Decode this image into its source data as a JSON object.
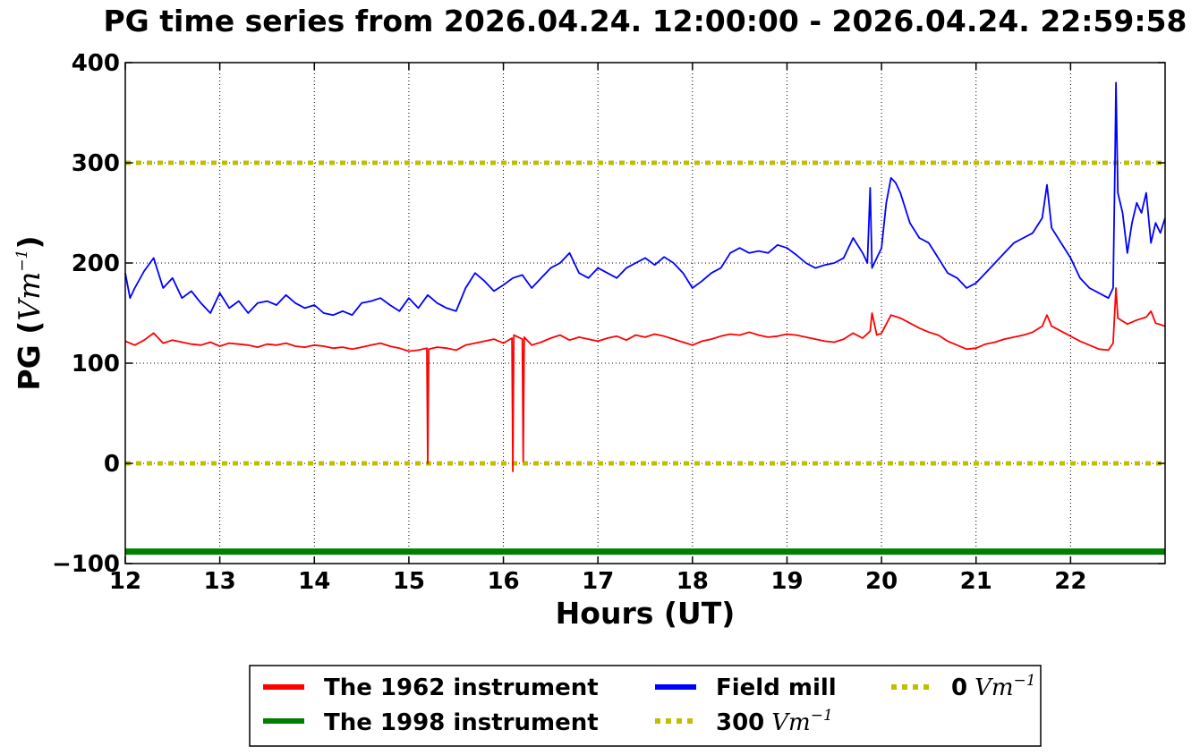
{
  "chart_data": {
    "type": "line",
    "title": "PG time series from 2026.04.24. 12:00:00 - 2026.04.24. 22:59:58",
    "xlabel": "Hours (UT)",
    "ylabel": {
      "prefix": "PG (",
      "math": "Vm",
      "exp": "−1",
      "suffix": ")"
    },
    "xlim": [
      12,
      22.9999
    ],
    "ylim": [
      -100,
      400
    ],
    "xticks": [
      "12",
      "13",
      "14",
      "15",
      "16",
      "17",
      "18",
      "19",
      "20",
      "21",
      "22"
    ],
    "yticks": [
      "400",
      "300",
      "200",
      "100",
      "0",
      "−100"
    ],
    "grid": true,
    "legend_position": "below",
    "series": [
      {
        "name": "The 1962 instrument",
        "color": "#ff0000",
        "x": [
          12.0,
          12.1,
          12.2,
          12.3,
          12.4,
          12.5,
          12.6,
          12.7,
          12.8,
          12.9,
          13.0,
          13.1,
          13.2,
          13.3,
          13.4,
          13.5,
          13.6,
          13.7,
          13.8,
          13.9,
          14.0,
          14.1,
          14.2,
          14.3,
          14.4,
          14.5,
          14.6,
          14.7,
          14.8,
          14.9,
          15.0,
          15.1,
          15.19,
          15.2,
          15.21,
          15.3,
          15.4,
          15.5,
          15.6,
          15.7,
          15.8,
          15.9,
          16.0,
          16.09,
          16.1,
          16.11,
          16.2,
          16.21,
          16.22,
          16.3,
          16.4,
          16.5,
          16.6,
          16.7,
          16.8,
          16.9,
          17.0,
          17.1,
          17.2,
          17.3,
          17.4,
          17.5,
          17.6,
          17.7,
          17.8,
          17.9,
          18.0,
          18.1,
          18.2,
          18.3,
          18.4,
          18.5,
          18.6,
          18.7,
          18.8,
          18.9,
          19.0,
          19.1,
          19.2,
          19.3,
          19.4,
          19.5,
          19.6,
          19.7,
          19.8,
          19.88,
          19.9,
          19.95,
          20.0,
          20.1,
          20.2,
          20.3,
          20.4,
          20.5,
          20.6,
          20.7,
          20.8,
          20.9,
          21.0,
          21.1,
          21.2,
          21.3,
          21.4,
          21.5,
          21.6,
          21.7,
          21.75,
          21.8,
          21.9,
          22.0,
          22.1,
          22.2,
          22.3,
          22.4,
          22.45,
          22.48,
          22.5,
          22.6,
          22.7,
          22.8,
          22.85,
          22.9,
          23.0
        ],
        "y": [
          122,
          118,
          123,
          130,
          120,
          123,
          121,
          119,
          118,
          121,
          117,
          120,
          119,
          118,
          116,
          119,
          118,
          120,
          117,
          116,
          118,
          117,
          115,
          116,
          114,
          116,
          118,
          120,
          117,
          115,
          112,
          113,
          115,
          0,
          114,
          116,
          115,
          113,
          118,
          120,
          122,
          124,
          120,
          125,
          -8,
          128,
          124,
          2,
          126,
          118,
          121,
          125,
          128,
          123,
          126,
          124,
          122,
          125,
          127,
          123,
          128,
          126,
          129,
          127,
          124,
          121,
          118,
          122,
          124,
          127,
          129,
          128,
          131,
          128,
          126,
          127,
          129,
          128,
          126,
          124,
          122,
          121,
          124,
          130,
          125,
          132,
          150,
          128,
          130,
          148,
          145,
          140,
          135,
          131,
          128,
          122,
          118,
          114,
          115,
          119,
          121,
          124,
          126,
          128,
          131,
          137,
          148,
          137,
          132,
          127,
          122,
          118,
          114,
          113,
          120,
          175,
          145,
          139,
          143,
          146,
          152,
          140,
          137
        ]
      },
      {
        "name": "The 1998 instrument",
        "color": "#008000",
        "x": [
          12.0,
          23.0
        ],
        "y": [
          -88,
          -88
        ]
      },
      {
        "name": "Field mill",
        "color": "#0000ff",
        "x": [
          12.0,
          12.05,
          12.1,
          12.2,
          12.3,
          12.4,
          12.5,
          12.6,
          12.7,
          12.8,
          12.9,
          13.0,
          13.1,
          13.2,
          13.3,
          13.4,
          13.5,
          13.6,
          13.7,
          13.8,
          13.9,
          14.0,
          14.1,
          14.2,
          14.3,
          14.4,
          14.5,
          14.6,
          14.7,
          14.8,
          14.9,
          15.0,
          15.1,
          15.2,
          15.3,
          15.4,
          15.5,
          15.6,
          15.7,
          15.8,
          15.9,
          16.0,
          16.1,
          16.2,
          16.3,
          16.4,
          16.5,
          16.6,
          16.7,
          16.8,
          16.9,
          17.0,
          17.1,
          17.2,
          17.3,
          17.4,
          17.5,
          17.6,
          17.7,
          17.8,
          17.9,
          18.0,
          18.1,
          18.2,
          18.3,
          18.4,
          18.5,
          18.6,
          18.7,
          18.8,
          18.9,
          19.0,
          19.1,
          19.2,
          19.3,
          19.4,
          19.5,
          19.6,
          19.7,
          19.8,
          19.85,
          19.88,
          19.9,
          19.95,
          20.0,
          20.05,
          20.1,
          20.15,
          20.2,
          20.3,
          20.4,
          20.5,
          20.6,
          20.7,
          20.8,
          20.9,
          21.0,
          21.1,
          21.2,
          21.3,
          21.4,
          21.5,
          21.6,
          21.7,
          21.75,
          21.8,
          21.9,
          22.0,
          22.1,
          22.2,
          22.3,
          22.4,
          22.45,
          22.47,
          22.48,
          22.5,
          22.55,
          22.6,
          22.65,
          22.7,
          22.75,
          22.8,
          22.85,
          22.9,
          22.95,
          23.0
        ],
        "y": [
          190,
          165,
          175,
          192,
          205,
          175,
          185,
          165,
          172,
          160,
          150,
          170,
          155,
          162,
          150,
          160,
          162,
          158,
          168,
          160,
          155,
          158,
          150,
          148,
          152,
          148,
          160,
          162,
          165,
          158,
          152,
          165,
          155,
          168,
          160,
          155,
          152,
          175,
          190,
          182,
          172,
          178,
          185,
          188,
          175,
          185,
          195,
          200,
          210,
          190,
          185,
          195,
          190,
          185,
          195,
          200,
          205,
          198,
          206,
          200,
          190,
          175,
          182,
          190,
          195,
          210,
          215,
          210,
          212,
          210,
          218,
          215,
          208,
          200,
          195,
          198,
          200,
          205,
          225,
          210,
          200,
          275,
          195,
          205,
          215,
          260,
          285,
          280,
          270,
          240,
          225,
          220,
          205,
          190,
          185,
          175,
          180,
          190,
          200,
          210,
          220,
          225,
          230,
          245,
          278,
          235,
          220,
          205,
          185,
          175,
          170,
          165,
          175,
          300,
          380,
          270,
          250,
          210,
          240,
          260,
          250,
          270,
          220,
          240,
          230,
          245
        ]
      }
    ],
    "hlines": [
      {
        "name": "300",
        "unit_math": "Vm",
        "unit_exp": "−1",
        "value": 300,
        "color": "#bfbf00"
      },
      {
        "name": "0",
        "unit_math": "Vm",
        "unit_exp": "−1",
        "value": 0,
        "color": "#bfbf00"
      }
    ]
  }
}
